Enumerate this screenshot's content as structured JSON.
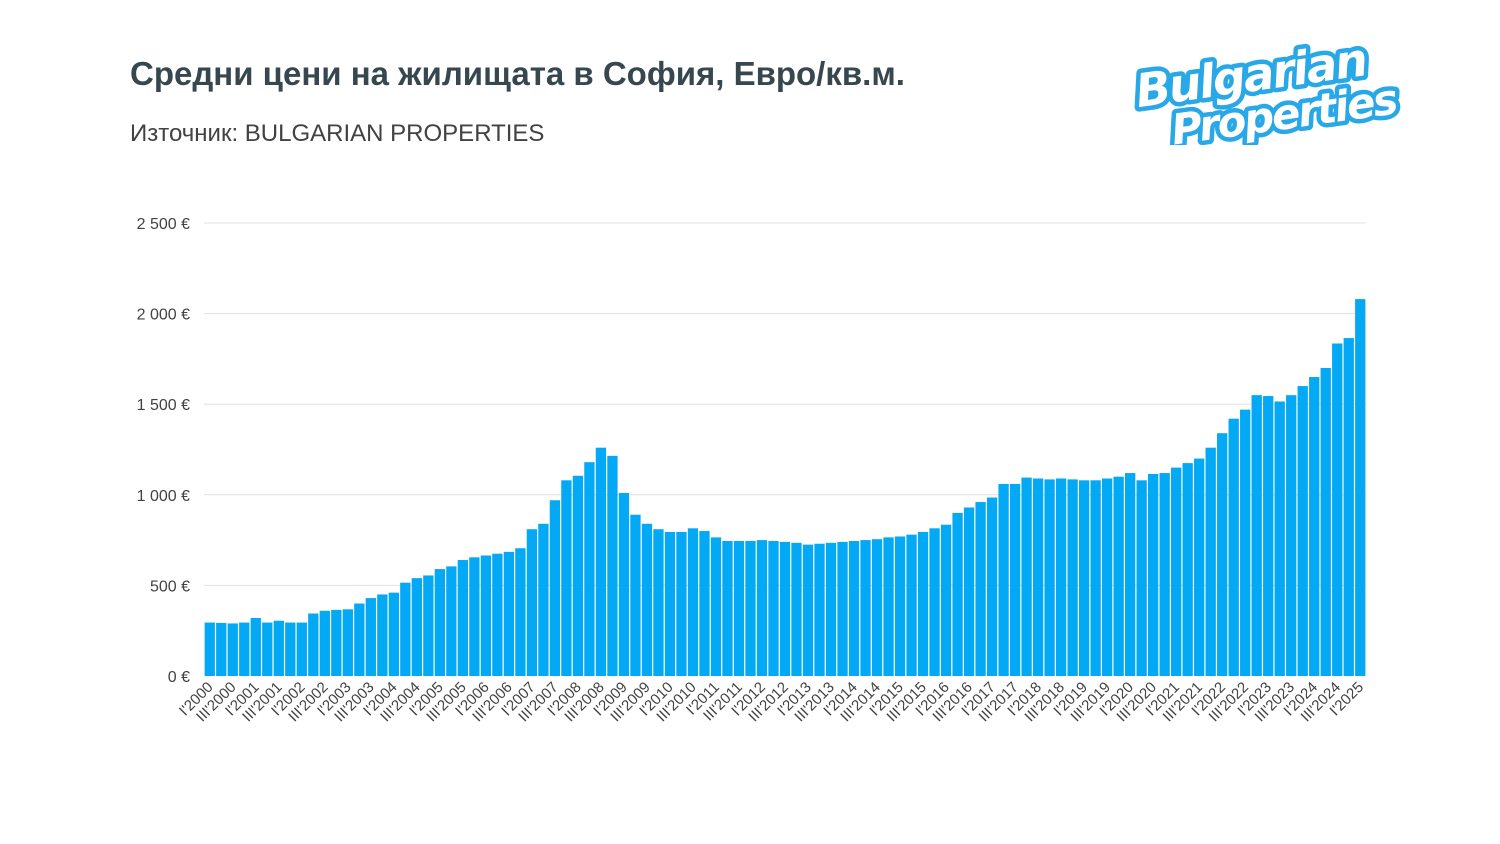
{
  "header": {
    "title": "Средни цени на жилищата в София, Евро/кв.м.",
    "subtitle": "Източник: BULGARIAN PROPERTIES",
    "logo_text": [
      "Bulgarian",
      "Properties"
    ]
  },
  "colors": {
    "bar": "#03a9f4",
    "title": "#37474f",
    "grid": "#e0e0e0",
    "logo": "#29a8e8"
  },
  "chart_data": {
    "type": "bar",
    "title": "Средни цени на жилищата в София, Евро/кв.м.",
    "xlabel": "",
    "ylabel": "",
    "ylim": [
      0,
      2500
    ],
    "grid": true,
    "y_ticks": [
      0,
      500,
      1000,
      1500,
      2000,
      2500
    ],
    "y_tick_labels": [
      "0 €",
      "500 €",
      "1 000 €",
      "1 500 €",
      "2 000 €",
      "2 500 €"
    ],
    "x_range": [
      "I'2000",
      "I'2025"
    ],
    "x_frequency": "quarterly",
    "x_tick_labels": [
      "I'2000",
      "III'2000",
      "I'2001",
      "III'2001",
      "I'2002",
      "III'2002",
      "I'2003",
      "III'2003",
      "I'2004",
      "III'2004",
      "I'2005",
      "III'2005",
      "I'2006",
      "III'2006",
      "I'2007",
      "III'2007",
      "I'2008",
      "III'2008",
      "I'2009",
      "III'2009",
      "I'2010",
      "III'2010",
      "I'2011",
      "III'2011",
      "I'2012",
      "III'2012",
      "I'2013",
      "III'2013",
      "I'2014",
      "III'2014",
      "I'2015",
      "III'2015",
      "I'2016",
      "III'2016",
      "I'2017",
      "III'2017",
      "I'2018",
      "III'2018",
      "I'2019",
      "III'2019",
      "I'2020",
      "III'2020",
      "I'2021",
      "III'2021",
      "I'2022",
      "III'2022",
      "I'2023",
      "III'2023",
      "I'2024",
      "III'2024",
      "I'2025"
    ],
    "values": [
      295,
      293,
      290,
      295,
      320,
      295,
      305,
      295,
      295,
      345,
      360,
      365,
      368,
      400,
      430,
      450,
      460,
      515,
      540,
      555,
      590,
      605,
      640,
      655,
      665,
      675,
      685,
      705,
      810,
      840,
      970,
      1080,
      1105,
      1180,
      1260,
      1215,
      1010,
      890,
      840,
      810,
      795,
      795,
      815,
      800,
      765,
      745,
      745,
      745,
      750,
      745,
      740,
      735,
      725,
      730,
      735,
      740,
      745,
      750,
      755,
      765,
      770,
      780,
      795,
      815,
      835,
      900,
      930,
      960,
      985,
      1060,
      1060,
      1095,
      1090,
      1085,
      1090,
      1085,
      1080,
      1080,
      1090,
      1100,
      1120,
      1080,
      1115,
      1120,
      1150,
      1175,
      1200,
      1260,
      1340,
      1420,
      1470,
      1550,
      1545,
      1515,
      1550,
      1600,
      1650,
      1700,
      1835,
      1865,
      2080
    ]
  }
}
